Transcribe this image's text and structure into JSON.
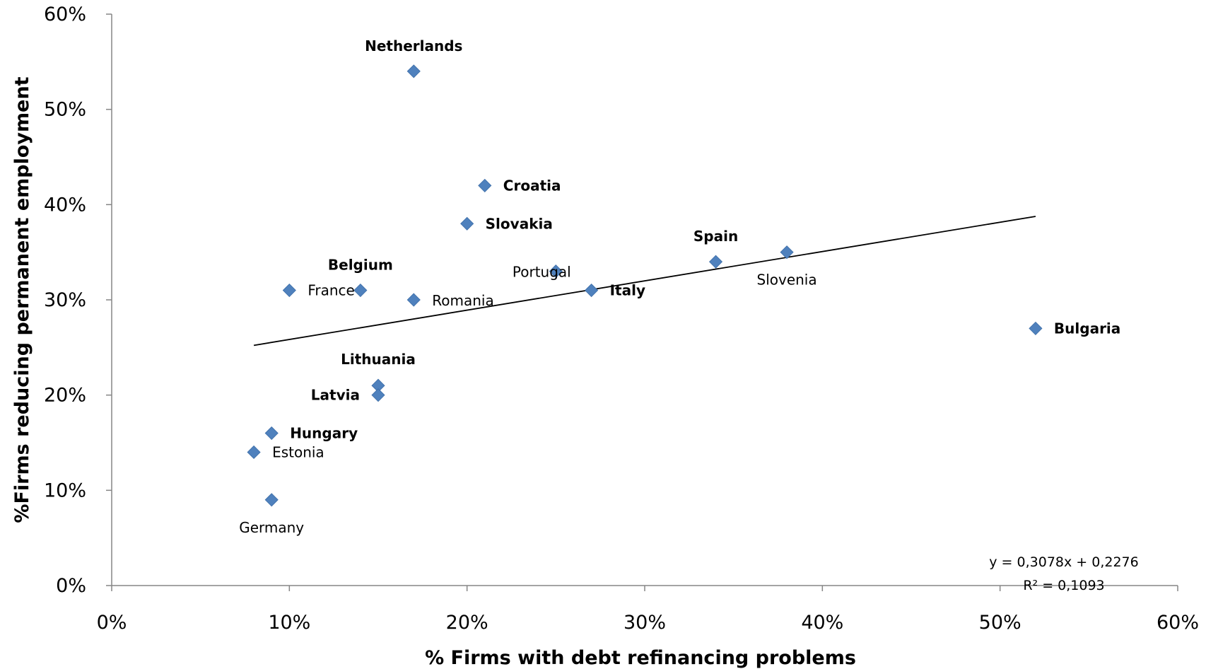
{
  "chart_data": {
    "type": "scatter",
    "xlabel": "% Firms with debt refinancing problems",
    "ylabel": "%Firms reducing permanent employment",
    "xlim": [
      0,
      0.6
    ],
    "ylim": [
      0,
      0.6
    ],
    "x_ticks": [
      "0%",
      "10%",
      "20%",
      "30%",
      "40%",
      "50%",
      "60%"
    ],
    "y_ticks": [
      "0%",
      "10%",
      "20%",
      "30%",
      "40%",
      "50%",
      "60%"
    ],
    "grid": false,
    "marker": "diamond",
    "marker_color": "#4f81bd",
    "points": [
      {
        "label": "Netherlands",
        "x": 0.17,
        "y": 0.54,
        "bold": true
      },
      {
        "label": "Croatia",
        "x": 0.21,
        "y": 0.42,
        "bold": true
      },
      {
        "label": "Slovakia",
        "x": 0.2,
        "y": 0.38,
        "bold": true
      },
      {
        "label": "Spain",
        "x": 0.34,
        "y": 0.34,
        "bold": true
      },
      {
        "label": "Slovenia",
        "x": 0.38,
        "y": 0.35,
        "bold": false
      },
      {
        "label": "Belgium",
        "x": 0.14,
        "y": 0.31,
        "bold": true
      },
      {
        "label": "France",
        "x": 0.1,
        "y": 0.31,
        "bold": false
      },
      {
        "label": "Romania",
        "x": 0.17,
        "y": 0.3,
        "bold": false
      },
      {
        "label": "Portugal",
        "x": 0.25,
        "y": 0.33,
        "bold": false
      },
      {
        "label": "Italy",
        "x": 0.27,
        "y": 0.31,
        "bold": true
      },
      {
        "label": "Bulgaria",
        "x": 0.52,
        "y": 0.27,
        "bold": true
      },
      {
        "label": "Lithuania",
        "x": 0.15,
        "y": 0.21,
        "bold": true
      },
      {
        "label": "Latvia",
        "x": 0.15,
        "y": 0.2,
        "bold": true
      },
      {
        "label": "Hungary",
        "x": 0.09,
        "y": 0.16,
        "bold": true
      },
      {
        "label": "Estonia",
        "x": 0.08,
        "y": 0.14,
        "bold": false
      },
      {
        "label": "Germany",
        "x": 0.09,
        "y": 0.09,
        "bold": false
      }
    ],
    "trendline": {
      "slope": 0.3078,
      "intercept": 0.2276,
      "x_range": [
        0.08,
        0.52
      ],
      "equation": "y = 0,3078x + 0,2276",
      "r_squared": "R² = 0,1093"
    }
  }
}
